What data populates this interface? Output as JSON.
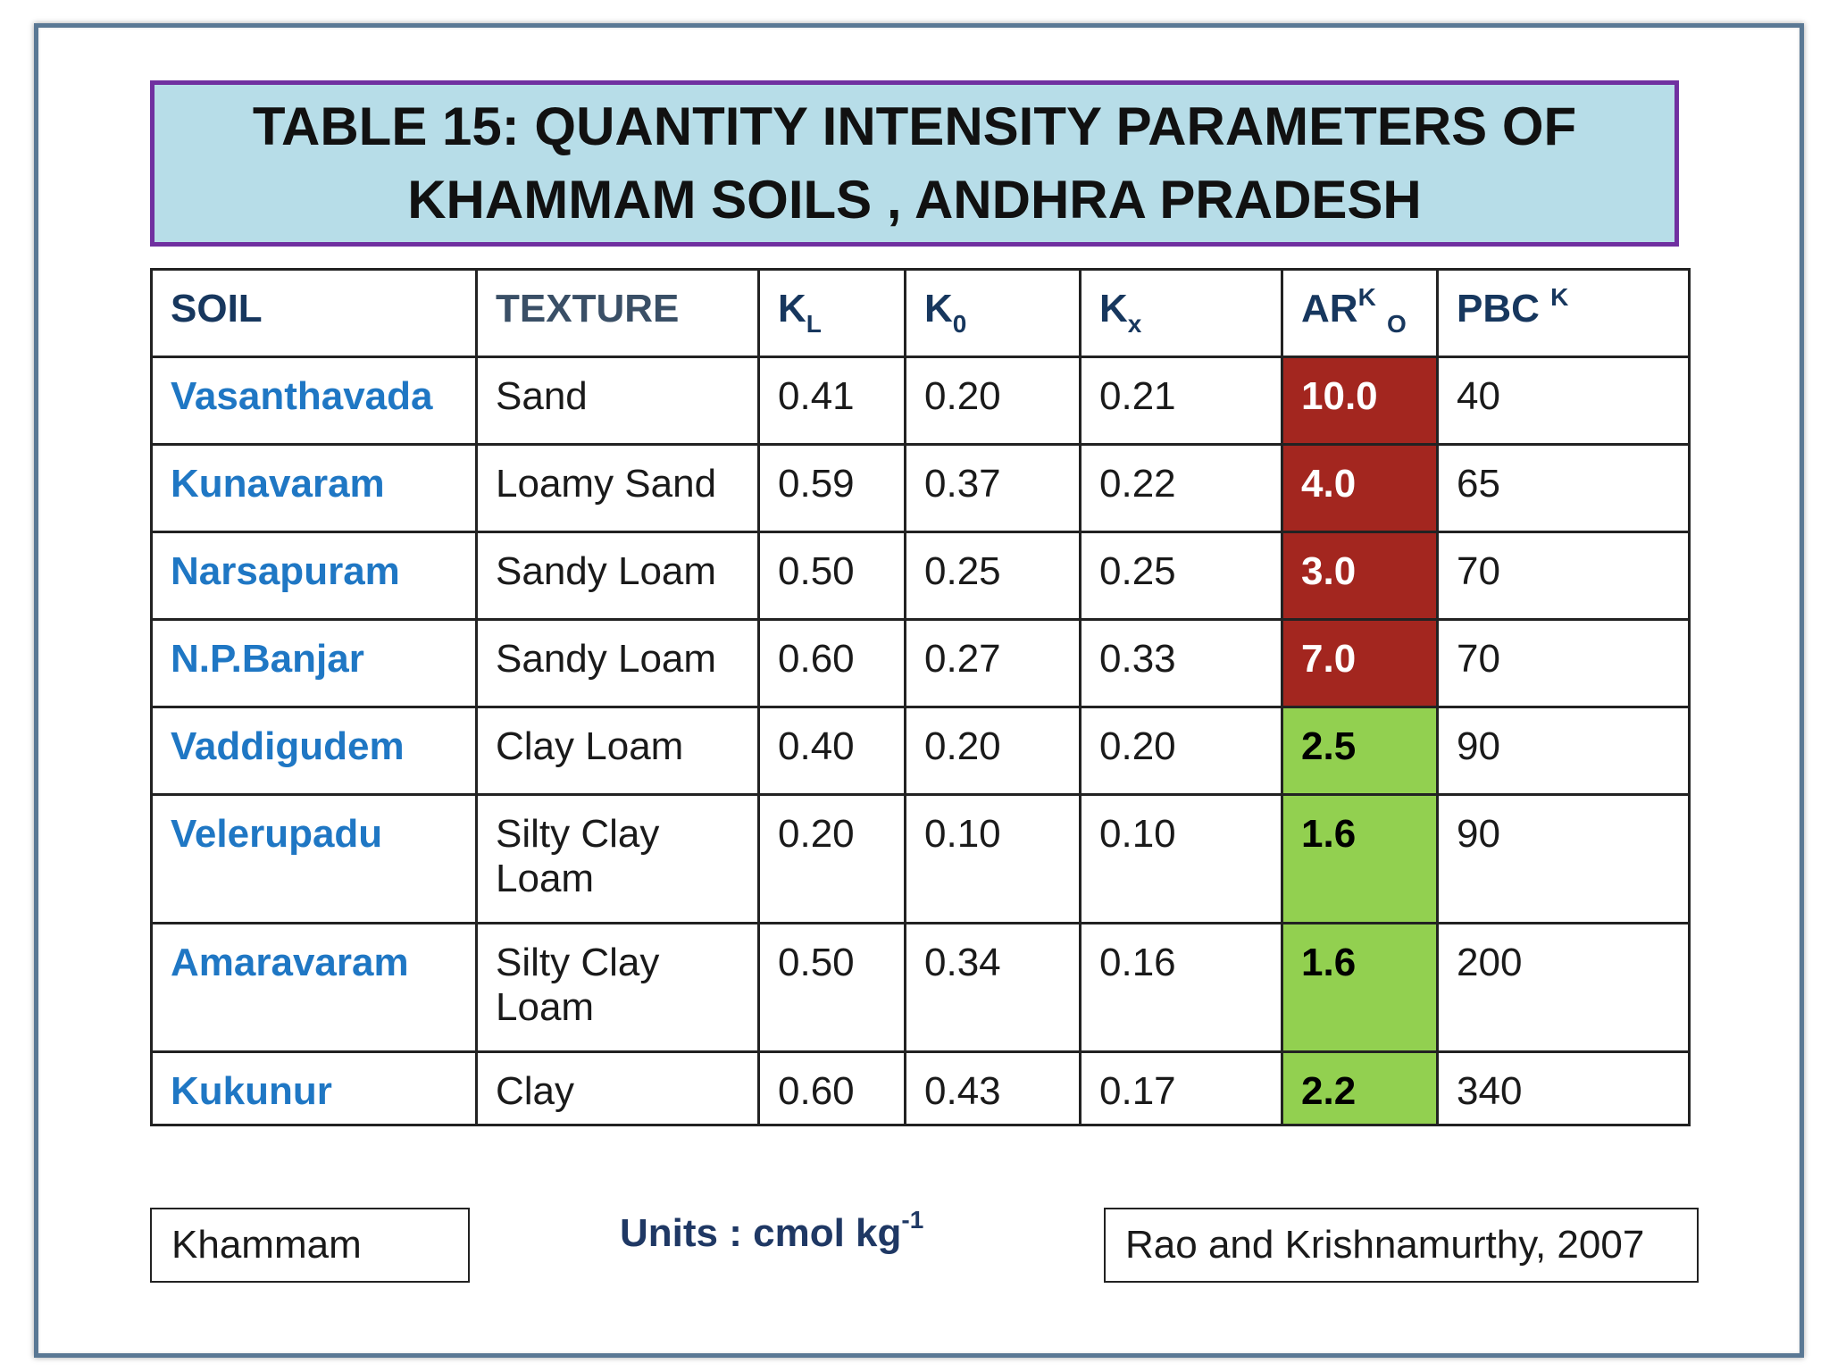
{
  "title": {
    "line1": "TABLE 15: QUANTITY INTENSITY PARAMETERS OF",
    "line2": "KHAMMAM SOILS , ANDHRA PRADESH"
  },
  "headers": {
    "soil": "SOIL",
    "texture": "TEXTURE",
    "kl_base": "K",
    "kl_sub": "L",
    "k0_base": "K",
    "k0_sub": "0",
    "kx_base": "K",
    "kx_sub": "x",
    "ar_base": "AR",
    "ar_sup": "K",
    "ar_sub": "O",
    "pbc_base": "PBC ",
    "pbc_sup": "K"
  },
  "rows": [
    {
      "soil": "Vasanthavada",
      "texture": "Sand",
      "kl": "0.41",
      "k0": "0.20",
      "kx": "0.21",
      "ar": "10.0",
      "pbc": "40",
      "ar_color": "#a3261f"
    },
    {
      "soil": "Kunavaram",
      "texture": "Loamy Sand",
      "kl": "0.59",
      "k0": "0.37",
      "kx": "0.22",
      "ar": "4.0",
      "pbc": "65",
      "ar_color": "#a3261f"
    },
    {
      "soil": "Narsapuram",
      "texture": "Sandy Loam",
      "kl": "0.50",
      "k0": "0.25",
      "kx": "0.25",
      "ar": "3.0",
      "pbc": "70",
      "ar_color": "#a3261f"
    },
    {
      "soil": "N.P.Banjar",
      "texture": "Sandy Loam",
      "kl": "0.60",
      "k0": "0.27",
      "kx": "0.33",
      "ar": "7.0",
      "pbc": "70",
      "ar_color": "#a3261f"
    },
    {
      "soil": "Vaddigudem",
      "texture": "Clay Loam",
      "kl": "0.40",
      "k0": "0.20",
      "kx": "0.20",
      "ar": "2.5",
      "pbc": "90",
      "ar_color": "#92d050"
    },
    {
      "soil": "Velerupadu",
      "texture_line1": "Silty Clay",
      "texture_line2": "Loam",
      "kl": "0.20",
      "k0": "0.10",
      "kx": "0.10",
      "ar": "1.6",
      "pbc": "90",
      "ar_color": "#92d050"
    },
    {
      "soil": "Amaravaram",
      "texture_line1": "Silty Clay",
      "texture_line2": "Loam",
      "kl": "0.50",
      "k0": "0.34",
      "kx": "0.16",
      "ar": "1.6",
      "pbc": "200",
      "ar_color": "#92d050"
    },
    {
      "soil": "Kukunur",
      "texture": "Clay",
      "kl": "0.60",
      "k0": "0.43",
      "kx": "0.17",
      "ar": "2.2",
      "pbc": "340",
      "ar_color": "#92d050"
    }
  ],
  "footer": {
    "location": "Khammam",
    "units_text": "Units : cmol kg",
    "units_sup": "-1",
    "citation": "Rao and Krishnamurthy, 2007"
  }
}
